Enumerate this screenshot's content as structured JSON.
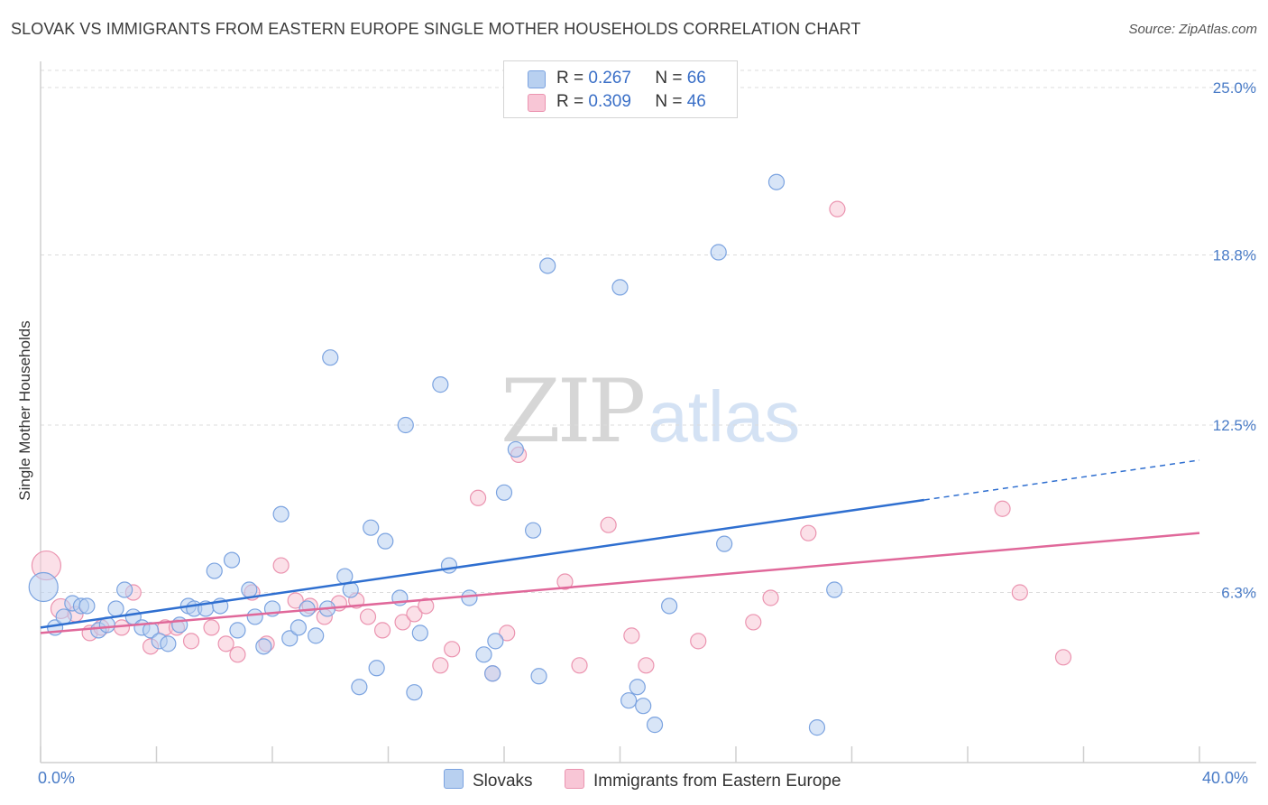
{
  "title": "SLOVAK VS IMMIGRANTS FROM EASTERN EUROPE SINGLE MOTHER HOUSEHOLDS CORRELATION CHART",
  "source": "Source: ZipAtlas.com",
  "watermark": {
    "zip": "ZIP",
    "atlas": "atlas"
  },
  "legend": {
    "r_label": "R =",
    "n_label": "N =",
    "series": [
      {
        "r": "0.267",
        "n": "66"
      },
      {
        "r": "0.309",
        "n": "46"
      }
    ]
  },
  "bottom_legend": [
    "Slovaks",
    "Immigrants from Eastern Europe"
  ],
  "colors": {
    "blue_fill": "#b8d0f0",
    "blue_stroke": "#7ba3e0",
    "blue_line": "#2f6fd0",
    "pink_fill": "#f8c6d6",
    "pink_stroke": "#eb94b0",
    "pink_line": "#e0689a",
    "grid": "#dcdcdc",
    "tick_text": "#4a7cc7"
  },
  "chart_data": {
    "type": "scatter",
    "title": "SLOVAK VS IMMIGRANTS FROM EASTERN EUROPE SINGLE MOTHER HOUSEHOLDS CORRELATION CHART",
    "xlabel": "",
    "ylabel": "Single Mother Households",
    "xlim": [
      0,
      40
    ],
    "ylim": [
      0,
      25
    ],
    "x_tick_labels": [
      "0.0%",
      "40.0%"
    ],
    "y_ticks": [
      6.3,
      12.5,
      18.8,
      25.0
    ],
    "y_tick_labels": [
      "6.3%",
      "12.5%",
      "18.8%",
      "25.0%"
    ],
    "series": [
      {
        "name": "Slovaks",
        "r": 0.267,
        "n": 66,
        "trend": {
          "x0": 0,
          "y0": 5.0,
          "x1": 40,
          "y1": 11.2,
          "solid_until": 30.5
        },
        "points": [
          {
            "x": 0.1,
            "y": 6.5,
            "s": 16
          },
          {
            "x": 0.5,
            "y": 5.0
          },
          {
            "x": 0.8,
            "y": 5.4
          },
          {
            "x": 1.1,
            "y": 5.9
          },
          {
            "x": 1.4,
            "y": 5.8
          },
          {
            "x": 1.6,
            "y": 5.8
          },
          {
            "x": 2.0,
            "y": 4.9
          },
          {
            "x": 2.3,
            "y": 5.1
          },
          {
            "x": 2.6,
            "y": 5.7
          },
          {
            "x": 2.9,
            "y": 6.4
          },
          {
            "x": 3.2,
            "y": 5.4
          },
          {
            "x": 3.5,
            "y": 5.0
          },
          {
            "x": 3.8,
            "y": 4.9
          },
          {
            "x": 4.1,
            "y": 4.5
          },
          {
            "x": 4.4,
            "y": 4.4
          },
          {
            "x": 4.8,
            "y": 5.1
          },
          {
            "x": 5.1,
            "y": 5.8
          },
          {
            "x": 5.3,
            "y": 5.7
          },
          {
            "x": 5.7,
            "y": 5.7
          },
          {
            "x": 6.0,
            "y": 7.1
          },
          {
            "x": 6.2,
            "y": 5.8
          },
          {
            "x": 6.6,
            "y": 7.5
          },
          {
            "x": 6.8,
            "y": 4.9
          },
          {
            "x": 7.2,
            "y": 6.4
          },
          {
            "x": 7.4,
            "y": 5.4
          },
          {
            "x": 7.7,
            "y": 4.3
          },
          {
            "x": 8.0,
            "y": 5.7
          },
          {
            "x": 8.3,
            "y": 9.2
          },
          {
            "x": 8.6,
            "y": 4.6
          },
          {
            "x": 8.9,
            "y": 5.0
          },
          {
            "x": 9.2,
            "y": 5.7
          },
          {
            "x": 9.5,
            "y": 4.7
          },
          {
            "x": 9.9,
            "y": 5.7
          },
          {
            "x": 10.0,
            "y": 15.0
          },
          {
            "x": 10.5,
            "y": 6.9
          },
          {
            "x": 10.7,
            "y": 6.4
          },
          {
            "x": 11.0,
            "y": 2.8
          },
          {
            "x": 11.4,
            "y": 8.7
          },
          {
            "x": 11.6,
            "y": 3.5
          },
          {
            "x": 11.9,
            "y": 8.2
          },
          {
            "x": 12.4,
            "y": 6.1
          },
          {
            "x": 12.6,
            "y": 12.5
          },
          {
            "x": 12.9,
            "y": 2.6
          },
          {
            "x": 13.1,
            "y": 4.8
          },
          {
            "x": 13.8,
            "y": 14.0
          },
          {
            "x": 14.1,
            "y": 7.3
          },
          {
            "x": 14.8,
            "y": 6.1
          },
          {
            "x": 15.3,
            "y": 4.0
          },
          {
            "x": 15.6,
            "y": 3.3
          },
          {
            "x": 15.7,
            "y": 4.5
          },
          {
            "x": 16.0,
            "y": 10.0
          },
          {
            "x": 16.4,
            "y": 11.6
          },
          {
            "x": 17.0,
            "y": 8.6
          },
          {
            "x": 17.2,
            "y": 3.2
          },
          {
            "x": 17.5,
            "y": 18.4
          },
          {
            "x": 20.0,
            "y": 17.6
          },
          {
            "x": 20.3,
            "y": 2.3
          },
          {
            "x": 20.6,
            "y": 2.8
          },
          {
            "x": 20.8,
            "y": 2.1
          },
          {
            "x": 21.2,
            "y": 1.4
          },
          {
            "x": 21.7,
            "y": 5.8
          },
          {
            "x": 23.4,
            "y": 18.9
          },
          {
            "x": 23.6,
            "y": 8.1
          },
          {
            "x": 25.4,
            "y": 21.5
          },
          {
            "x": 26.8,
            "y": 1.3
          },
          {
            "x": 27.4,
            "y": 6.4
          }
        ]
      },
      {
        "name": "Immigrants from Eastern Europe",
        "r": 0.309,
        "n": 46,
        "trend": {
          "x0": 0,
          "y0": 4.8,
          "x1": 40,
          "y1": 8.5
        },
        "points": [
          {
            "x": 0.2,
            "y": 7.3,
            "s": 16
          },
          {
            "x": 0.7,
            "y": 5.7,
            "s": 11
          },
          {
            "x": 1.2,
            "y": 5.5
          },
          {
            "x": 1.7,
            "y": 4.8
          },
          {
            "x": 2.1,
            "y": 5.0
          },
          {
            "x": 2.8,
            "y": 5.0
          },
          {
            "x": 3.2,
            "y": 6.3
          },
          {
            "x": 3.8,
            "y": 4.3
          },
          {
            "x": 4.3,
            "y": 5.0
          },
          {
            "x": 4.7,
            "y": 5.0
          },
          {
            "x": 5.2,
            "y": 4.5
          },
          {
            "x": 5.9,
            "y": 5.0
          },
          {
            "x": 6.4,
            "y": 4.4
          },
          {
            "x": 6.8,
            "y": 4.0
          },
          {
            "x": 7.3,
            "y": 6.3
          },
          {
            "x": 7.8,
            "y": 4.4
          },
          {
            "x": 8.3,
            "y": 7.3
          },
          {
            "x": 8.8,
            "y": 6.0
          },
          {
            "x": 9.3,
            "y": 5.8
          },
          {
            "x": 9.8,
            "y": 5.4
          },
          {
            "x": 10.3,
            "y": 5.9
          },
          {
            "x": 10.9,
            "y": 6.0
          },
          {
            "x": 11.3,
            "y": 5.4
          },
          {
            "x": 11.8,
            "y": 4.9
          },
          {
            "x": 12.5,
            "y": 5.2
          },
          {
            "x": 12.9,
            "y": 5.5
          },
          {
            "x": 13.3,
            "y": 5.8
          },
          {
            "x": 13.8,
            "y": 3.6
          },
          {
            "x": 14.2,
            "y": 4.2
          },
          {
            "x": 15.1,
            "y": 9.8
          },
          {
            "x": 15.6,
            "y": 3.3
          },
          {
            "x": 16.1,
            "y": 4.8
          },
          {
            "x": 16.5,
            "y": 11.4
          },
          {
            "x": 18.1,
            "y": 6.7
          },
          {
            "x": 18.6,
            "y": 3.6
          },
          {
            "x": 19.6,
            "y": 8.8
          },
          {
            "x": 20.4,
            "y": 4.7
          },
          {
            "x": 20.9,
            "y": 3.6
          },
          {
            "x": 22.7,
            "y": 4.5
          },
          {
            "x": 24.6,
            "y": 5.2
          },
          {
            "x": 25.2,
            "y": 6.1
          },
          {
            "x": 26.5,
            "y": 8.5
          },
          {
            "x": 27.5,
            "y": 20.5
          },
          {
            "x": 33.2,
            "y": 9.4
          },
          {
            "x": 33.8,
            "y": 6.3
          },
          {
            "x": 35.3,
            "y": 3.9
          }
        ]
      }
    ]
  }
}
